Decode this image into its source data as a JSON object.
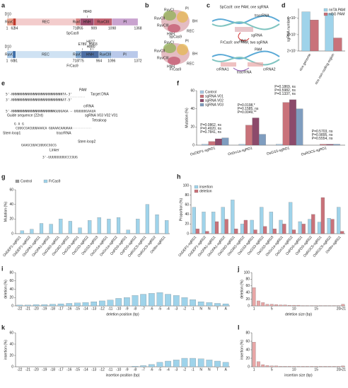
{
  "panel_labels": [
    "a",
    "b",
    "c",
    "d",
    "e",
    "f",
    "g",
    "h",
    "i",
    "j",
    "k",
    "l"
  ],
  "panel_a": {
    "proteins": [
      {
        "name": "SpCas9",
        "ticks": [
          1,
          62,
          94,
          718,
          765,
          909,
          1098,
          1368
        ],
        "domains": [
          "RuvCI",
          null,
          "REC",
          "RuvCII",
          "HNH",
          "RuvCIII",
          "PI"
        ],
        "colors": [
          "#e8a08a",
          "#c0392b",
          "#f3cccc",
          "#d98080",
          "#9c4d6e",
          "#c06070",
          "#c9a3cf"
        ],
        "sites": [
          "D10",
          "H840"
        ]
      },
      {
        "name": "FrCas9",
        "ticks": [
          1,
          60,
          91,
          718,
          775,
          964,
          1096,
          1372
        ],
        "domains": [
          "RuvCI",
          null,
          "REC",
          "RuvCII",
          "HNH",
          "RuvCIII",
          "PI"
        ],
        "colors": [
          "#a9c9e8",
          "#3f6fa8",
          "#cfe2f3",
          "#7fa8d0",
          "#4d6ea3",
          "#8fb1d9",
          "#b9c9ea"
        ],
        "sites": [
          "D10",
          "E789",
          "H877",
          "H880",
          "H903"
        ]
      }
    ]
  },
  "panel_b": {
    "structures": [
      {
        "name": "SpCas9",
        "labels": [
          "RuvCI",
          "PI",
          "RuvCII",
          "BH",
          "RuvCIII",
          "HNH",
          "REC"
        ]
      },
      {
        "name": "FrCas9",
        "labels": [
          "RuvCI",
          "PI",
          "RuvCII",
          "BH",
          "RuvCIII",
          "HNH",
          "REC"
        ]
      }
    ]
  },
  "panel_c": {
    "titles": [
      "SpCas9: one PAM, one sgRNA",
      "FrCas9: one PAM, two sgRNA"
    ],
    "labels": [
      "tracrRNA",
      "sgRNA",
      "nGG",
      "PAM",
      "tracrRNA",
      "crRNA1",
      "crRNA2"
    ]
  },
  "panel_e": {
    "lines": [
      {
        "text": "PAM",
        "color": "#d03030"
      },
      {
        "text": "5'-NNNNNNNNNNNNNNNNNNNNNNNNNNTA-3'",
        "color": "#222222"
      },
      {
        "text": "Target DNA",
        "color": "#222222"
      },
      {
        "text": "3'-NNNNNNNNNNNNNNNNNNNNNNNNNNAT-5'",
        "color": "#222222"
      },
      {
        "text": "crRNA",
        "color": "#3a8fc0"
      },
      {
        "text": "5'-NNNNNNNNNNNNNNNNNNNNNNGUUGAGA - UGUUUUGAAUA",
        "color": "#3a8fc0"
      },
      {
        "text": "Guide sequence (22nt)",
        "color": "#3a8fc0"
      },
      {
        "text": "sgRNA V03 V02 V01",
        "color": "#222222"
      },
      {
        "text": "Tetraloop",
        "color": "#222222"
      },
      {
        "text": "G A G",
        "color": "#d03030"
      },
      {
        "text": "CUUGCGACUUUAAACA GUAAACAAUAAA",
        "color": "#d03030"
      },
      {
        "text": "Stem loop1",
        "color": "#d03030"
      },
      {
        "text": "tracrRNA",
        "color": "#d03030"
      },
      {
        "text": "GAAGCUUACUUUGCGGCG",
        "color": "#d03030"
      },
      {
        "text": "Linker",
        "color": "#8a4fb0"
      },
      {
        "text": "Stem loop2",
        "color": "#d03030"
      },
      {
        "text": "3'-UUUUUUUUUCCCGUG",
        "color": "#d03030"
      }
    ]
  },
  "chart_data": [
    {
      "type": "bar",
      "ylabel": "sgRNA number",
      "categories": [
        "rice genome",
        "rice non-coding region"
      ],
      "series": [
        {
          "name": "nnTA PAM",
          "color": "#9fd3ea",
          "values": [
            44000000,
            43000000
          ]
        },
        {
          "name": "nGG PAM",
          "color": "#c9727a",
          "values": [
            39000000,
            28000000
          ]
        }
      ],
      "ylim": [
        20000000,
        46000000
      ],
      "yticks": [
        {
          "value": 20000000,
          "label": "2×10⁷"
        },
        {
          "value": 30000000,
          "label": "3×10⁷"
        },
        {
          "value": 40000000,
          "label": "4×10⁷"
        }
      ],
      "legend": "top-right"
    },
    {
      "type": "bar",
      "ylabel": "Mutation (%)",
      "categories": [
        "OsDEP1-sgRD1",
        "OsGn1a-sgRD1",
        "OsGS3-sgRD1",
        "OsROC5-sgRD1"
      ],
      "series": [
        {
          "name": "Control",
          "color": "#a9c9e3",
          "values": [
            1,
            1,
            1,
            0
          ]
        },
        {
          "name": "sgRNA V01",
          "color": "#c9727a",
          "values": [
            4,
            22,
            47,
            1
          ]
        },
        {
          "name": "sgRNA V02",
          "color": "#8c4a6b",
          "values": [
            7,
            30,
            50,
            1
          ]
        },
        {
          "name": "sgRNA V03",
          "color": "#7f9dbf",
          "values": [
            8,
            12,
            40,
            1
          ]
        }
      ],
      "annotations": [
        [
          "P=0.0862, ns",
          "P=0.4920, ns",
          "P=0.7841, ns"
        ],
        [
          "P=0.0198,*",
          "P=0.1585, ns",
          "P=0.0049,**"
        ],
        [
          "P=0.1869, ns",
          "P=0.5982, ns",
          "P=0.1337, ns"
        ],
        [
          "P=0.5703, ns",
          "P=0.9895, ns",
          "P=0.5554, ns"
        ]
      ],
      "ylim": [
        0,
        60
      ],
      "yticks": [
        0,
        20,
        40,
        60
      ],
      "legend": "top-left"
    },
    {
      "type": "bar",
      "ylabel": "Mutation (%)",
      "categories": [
        "OsDEP1-sgRD1",
        "OsDEP1-sgRD2",
        "OsGPA1-sgRD1",
        "OsGPA1-sgRD2",
        "OsGW2-sgRD1",
        "OsGW2-sgRD2",
        "OsGS3-sgRD1",
        "OsGS3-sgRD2",
        "OsGS3-sgRD3",
        "OsGn1a-sgRD1",
        "OsGn1a-sgRD2",
        "OsPDS-sgRD1",
        "OsPDS-sgRD2",
        "OsROC5-sgRD1",
        "OsROC5-sgRD2",
        "OsWx-sgRD1"
      ],
      "series": [
        {
          "name": "Control",
          "color": "#9a9a9a",
          "values": [
            0,
            0,
            0,
            0,
            0,
            0,
            0,
            0,
            0,
            0,
            0,
            0,
            0,
            0,
            0,
            0
          ]
        },
        {
          "name": "FrCas9",
          "color": "#9fd3ea",
          "values": [
            4,
            6,
            14,
            13,
            20,
            17,
            8,
            18,
            22,
            20,
            22,
            5,
            20,
            40,
            26,
            18
          ]
        }
      ],
      "ylim": [
        0,
        60
      ],
      "yticks": [
        0,
        20,
        40,
        60
      ],
      "legend": "top-outside"
    },
    {
      "type": "bar",
      "ylabel": "Proportion (%)",
      "categories": [
        "OsDEP1-sgRD1",
        "OsDEP1-sgRD2",
        "OsGPA1-sgRD1",
        "OsGPA1-sgRD2",
        "OsGW2-sgRD1",
        "OsGW2-sgRD2",
        "OsGS3-sgRD1",
        "OsGS3-sgRD2",
        "OsGS3-sgRD3",
        "OsGn1a-sgRD1",
        "OsGn1a-sgRD2",
        "OsPDS-sgRD1",
        "OsPDS-sgRD2",
        "OsROC5-sgRD1",
        "OsROC5-sgRD2",
        "OsWx-sgRD1"
      ],
      "series": [
        {
          "name": "insertion",
          "color": "#9fd3ea",
          "values": [
            55,
            45,
            45,
            55,
            70,
            20,
            28,
            55,
            45,
            28,
            65,
            25,
            30,
            24,
            32,
            55
          ]
        },
        {
          "name": "deletion",
          "color": "#c9727a",
          "values": [
            10,
            5,
            25,
            30,
            10,
            28,
            8,
            15,
            10,
            20,
            8,
            20,
            40,
            75,
            30,
            5
          ]
        }
      ],
      "ylim": [
        0,
        100
      ],
      "yticks": [
        0,
        20,
        40,
        60,
        80,
        100
      ],
      "legend": "top-left"
    },
    {
      "type": "bar",
      "ylabel": "deletion (%)",
      "xlabel": "deletion position (bp)",
      "categories": [
        "-22",
        "-21",
        "-20",
        "-19",
        "-18",
        "-17",
        "-16",
        "-15",
        "-14",
        "-13",
        "-12",
        "-11",
        "-10",
        "-9",
        "-8",
        "-7",
        "-6",
        "-5",
        "-4",
        "-3",
        "-2",
        "-1",
        "N",
        "N",
        "T",
        "A"
      ],
      "series": [
        {
          "name": null,
          "color": "#9fd3ea",
          "values": [
            2,
            2,
            3,
            3,
            4,
            5,
            6,
            7,
            8,
            10,
            12,
            14,
            18,
            20,
            25,
            28,
            30,
            32,
            28,
            25,
            20,
            15,
            10,
            8,
            6,
            5
          ]
        }
      ],
      "ylim": [
        0,
        80
      ],
      "yticks": [
        0,
        20,
        40,
        60,
        80
      ]
    },
    {
      "type": "bar",
      "ylabel": "deletion (%)",
      "xlabel": "deletion size (bp)",
      "categories": [
        "1",
        null,
        null,
        null,
        "5",
        null,
        null,
        null,
        null,
        "10",
        null,
        null,
        null,
        null,
        "15",
        null,
        null,
        null,
        null,
        "20",
        ">21"
      ],
      "series": [
        {
          "name": null,
          "color": "#e8a6a6",
          "values": [
            55,
            15,
            10,
            5,
            5,
            4,
            3,
            3,
            2,
            2,
            2,
            1,
            1,
            1,
            1,
            1,
            1,
            1,
            1,
            1,
            5
          ]
        }
      ],
      "ylim": [
        0,
        100
      ],
      "yticks": [
        0,
        20,
        40,
        60,
        80,
        100
      ]
    },
    {
      "type": "bar",
      "ylabel": "insertion (%)",
      "xlabel": "insertion position (bp)",
      "categories": [
        "-22",
        "-21",
        "-20",
        "-19",
        "-18",
        "-17",
        "-16",
        "-15",
        "-14",
        "-13",
        "-12",
        "-11",
        "-10",
        "-9",
        "-8",
        "-7",
        "-6",
        "-5",
        "-4",
        "-3",
        "-2",
        "-1",
        "N",
        "N",
        "T",
        "A"
      ],
      "series": [
        {
          "name": null,
          "color": "#9fd3ea",
          "values": [
            0,
            0,
            0,
            0,
            0,
            0,
            0,
            0,
            0,
            0,
            0,
            0,
            0,
            0,
            1,
            2,
            4,
            8,
            10,
            12,
            15,
            15,
            14,
            12,
            10,
            8
          ]
        }
      ],
      "ylim": [
        0,
        60
      ],
      "yticks": [
        0,
        20,
        40,
        60
      ]
    },
    {
      "type": "bar",
      "ylabel": "insertion (%)",
      "xlabel": "insertion size (bp)",
      "categories": [
        "1",
        null,
        null,
        null,
        "5",
        null,
        null,
        null,
        null,
        "10",
        null,
        null,
        null,
        null,
        "15",
        null,
        null,
        null,
        null,
        "20",
        ">21"
      ],
      "series": [
        {
          "name": null,
          "color": "#e8a6a6",
          "values": [
            58,
            12,
            5,
            3,
            2,
            2,
            1,
            1,
            1,
            1,
            1,
            1,
            1,
            1,
            1,
            1,
            1,
            1,
            1,
            1,
            2
          ]
        }
      ],
      "ylim": [
        0,
        80
      ],
      "yticks": [
        0,
        20,
        40,
        60,
        80
      ]
    }
  ]
}
